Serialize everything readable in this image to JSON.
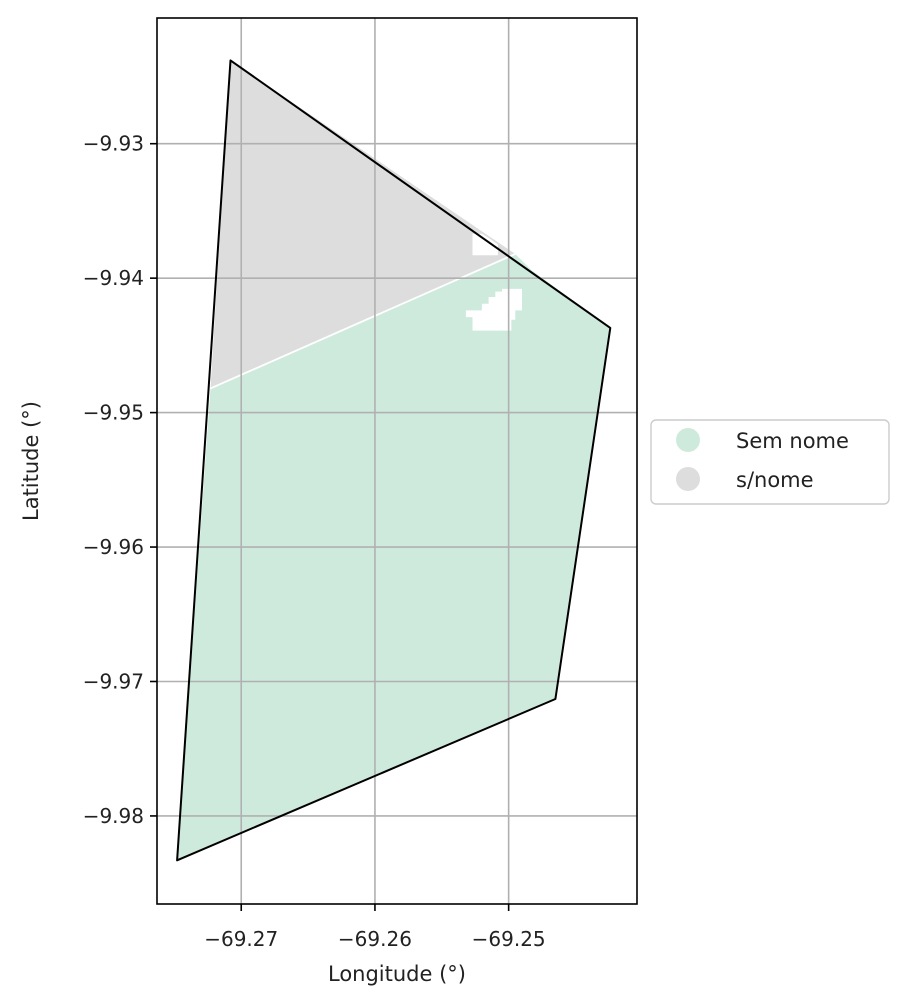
{
  "chart_data": {
    "type": "map",
    "xlabel": "Longitude (°)",
    "ylabel": "Latitude (°)",
    "xlim": [
      -69.2763,
      -69.2404
    ],
    "ylim": [
      -9.98655,
      -9.92065
    ],
    "x_ticks": [
      {
        "value": -69.27,
        "label": "−69.27"
      },
      {
        "value": -69.26,
        "label": "−69.26"
      },
      {
        "value": -69.25,
        "label": "−69.25"
      }
    ],
    "y_ticks": [
      {
        "value": -9.93,
        "label": "−9.93"
      },
      {
        "value": -9.94,
        "label": "−9.94"
      },
      {
        "value": -9.95,
        "label": "−9.95"
      },
      {
        "value": -9.96,
        "label": "−9.96"
      },
      {
        "value": -9.97,
        "label": "−9.97"
      },
      {
        "value": -9.98,
        "label": "−9.98"
      }
    ],
    "grid": true,
    "legend": {
      "placement": "right-center",
      "entries": [
        {
          "label": "Sem nome",
          "color": "#ceeadd"
        },
        {
          "label": "s/nome",
          "color": "#dddddd"
        }
      ]
    },
    "regions": [
      {
        "name": "Sem nome",
        "color": "#ceeadd",
        "polygon": [
          [
            -69.2723,
            -9.9482
          ],
          [
            -69.2495,
            -9.9382
          ],
          [
            -69.2483,
            -9.9394
          ],
          [
            -69.2424,
            -9.9437
          ],
          [
            -69.2465,
            -9.9713
          ],
          [
            -69.2748,
            -9.9833
          ]
        ]
      },
      {
        "name": "s/nome",
        "color": "#dddddd",
        "polygon": [
          [
            -69.2708,
            -9.9238
          ],
          [
            -69.2495,
            -9.9382
          ],
          [
            -69.2723,
            -9.9482
          ]
        ]
      }
    ],
    "holes": [
      [
        [
          -69.2527,
          -9.9367
        ],
        [
          -69.2527,
          -9.9383
        ],
        [
          -69.2508,
          -9.9383
        ],
        [
          -69.2508,
          -9.9375
        ],
        [
          -69.2515,
          -9.937
        ],
        [
          -69.252,
          -9.9367
        ]
      ],
      [
        [
          -69.2505,
          -9.9408
        ],
        [
          -69.249,
          -9.9408
        ],
        [
          -69.249,
          -9.9424
        ],
        [
          -69.2495,
          -9.9424
        ],
        [
          -69.2495,
          -9.9431
        ],
        [
          -69.2498,
          -9.9431
        ],
        [
          -69.2498,
          -9.9439
        ],
        [
          -69.2527,
          -9.9439
        ],
        [
          -69.2527,
          -9.9429
        ],
        [
          -69.2532,
          -9.9429
        ],
        [
          -69.2532,
          -9.9424
        ],
        [
          -69.252,
          -9.9424
        ],
        [
          -69.252,
          -9.9419
        ],
        [
          -69.2515,
          -9.9419
        ],
        [
          -69.2515,
          -9.9414
        ],
        [
          -69.251,
          -9.9414
        ],
        [
          -69.251,
          -9.941
        ],
        [
          -69.2505,
          -9.941
        ]
      ]
    ],
    "outline": [
      [
        -69.2708,
        -9.9238
      ],
      [
        -69.2424,
        -9.9437
      ],
      [
        -69.2465,
        -9.9713
      ],
      [
        -69.2748,
        -9.9833
      ]
    ]
  }
}
